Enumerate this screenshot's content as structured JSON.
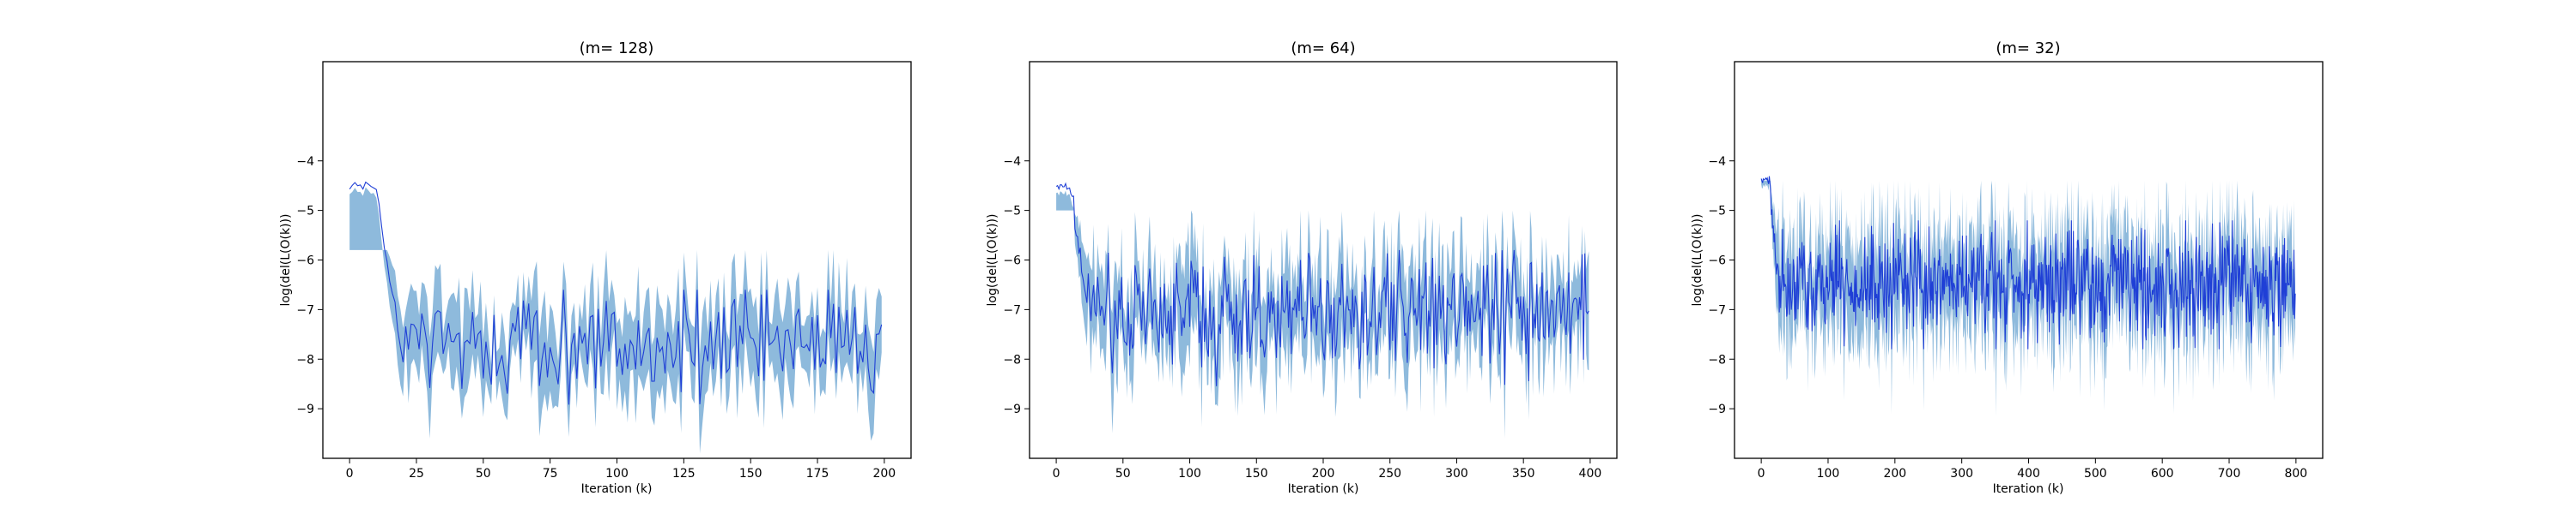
{
  "figure": {
    "line_color": "#1f3fd6",
    "band_color": "#7aaed6",
    "background": "#ffffff"
  },
  "chart_data": [
    {
      "type": "line",
      "title": "(m= 128)",
      "xlabel": "Iteration (k)",
      "ylabel": "log(del(L(O(k)))",
      "xlim": [
        -10,
        210
      ],
      "ylim": [
        -10,
        -2
      ],
      "xticks": [
        0,
        25,
        50,
        75,
        100,
        125,
        150,
        175,
        200
      ],
      "yticks": [
        -9,
        -8,
        -7,
        -6,
        -5,
        -4
      ],
      "n_points": 200,
      "series": [
        {
          "name": "mean",
          "start_value": -4.5,
          "transition_iteration": 15,
          "steady_mean": -7.7,
          "steady_min": -9.0,
          "steady_max": -6.6
        },
        {
          "name": "band",
          "start_halfwidth": 0.1,
          "steady_halfwidth": 0.8,
          "steady_lower_min": -10.0,
          "steady_upper_max": -5.8
        }
      ]
    },
    {
      "type": "line",
      "title": "(m= 64)",
      "xlabel": "Iteration (k)",
      "ylabel": "log(del(L(O(k)))",
      "xlim": [
        -20,
        420
      ],
      "ylim": [
        -10,
        -2
      ],
      "xticks": [
        0,
        50,
        100,
        150,
        200,
        250,
        300,
        350,
        400
      ],
      "yticks": [
        -9,
        -8,
        -7,
        -6,
        -5,
        -4
      ],
      "n_points": 400,
      "series": [
        {
          "name": "mean",
          "start_value": -4.5,
          "transition_iteration": 18,
          "steady_mean": -7.1,
          "steady_min": -9.2,
          "steady_max": -5.8
        },
        {
          "name": "band",
          "start_halfwidth": 0.1,
          "steady_halfwidth": 0.9,
          "steady_lower_min": -10.0,
          "steady_upper_max": -5.0
        }
      ]
    },
    {
      "type": "line",
      "title": "(m= 32)",
      "xlabel": "Iteration (k)",
      "ylabel": "log(del(L(O(k)))",
      "xlim": [
        -40,
        840
      ],
      "ylim": [
        -10,
        -2
      ],
      "xticks": [
        0,
        100,
        200,
        300,
        400,
        500,
        600,
        700,
        800
      ],
      "yticks": [
        -9,
        -8,
        -7,
        -6,
        -5,
        -4
      ],
      "n_points": 800,
      "series": [
        {
          "name": "mean",
          "start_value": -4.4,
          "transition_iteration": 20,
          "steady_mean": -6.5,
          "steady_min": -7.8,
          "steady_max": -5.2
        },
        {
          "name": "band",
          "start_halfwidth": 0.1,
          "steady_halfwidth": 1.0,
          "steady_lower_min": -9.5,
          "steady_upper_max": -4.4
        }
      ]
    }
  ]
}
